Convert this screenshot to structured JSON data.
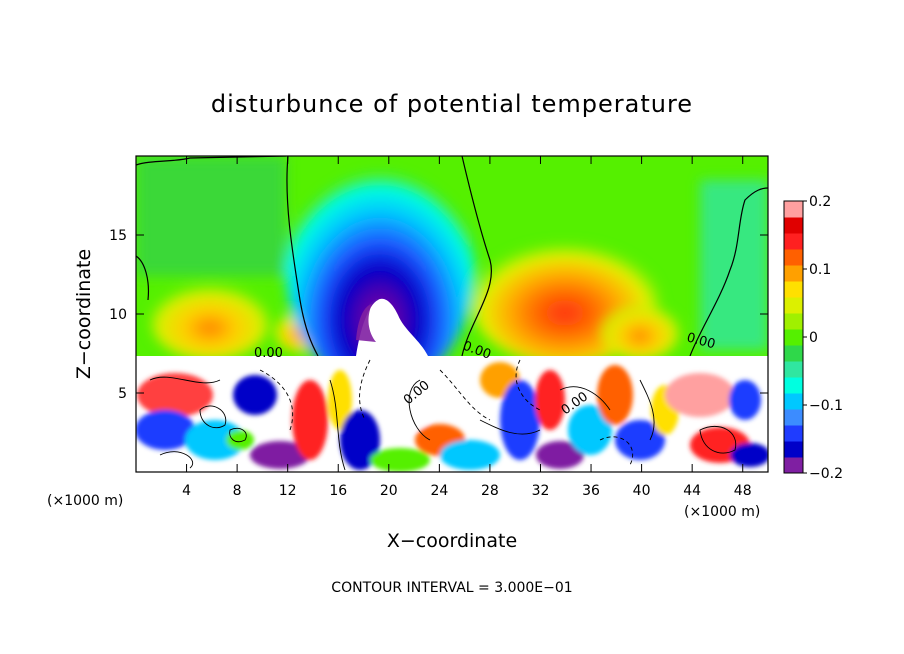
{
  "chart_data": {
    "type": "heatmap",
    "title": "disturbunce of potential temperature",
    "xlabel": "X−coordinate",
    "ylabel": "Z−coordinate",
    "x_unit_left": "(×1000 m)",
    "x_unit_right": "(×1000 m)",
    "footnote": "CONTOUR INTERVAL = 3.000E−01",
    "xlim": [
      0,
      50
    ],
    "ylim": [
      0,
      20
    ],
    "x_ticks": [
      4,
      8,
      12,
      16,
      20,
      24,
      28,
      32,
      36,
      40,
      44,
      48
    ],
    "x_tick_labels": [
      "4",
      "8",
      "12",
      "16",
      "20",
      "24",
      "28",
      "32",
      "36",
      "40",
      "44",
      "48"
    ],
    "y_ticks": [
      5,
      10,
      15
    ],
    "y_tick_labels": [
      "5",
      "10",
      "15"
    ],
    "colorbar": {
      "range": [
        -0.2,
        0.2
      ],
      "tick_values": [
        0.2,
        0.1,
        0,
        -0.1,
        -0.2
      ],
      "tick_labels": [
        "0.2",
        "0.1",
        "0",
        "−0.1",
        "−0.2"
      ],
      "colors": [
        "#7f1fa2",
        "#0000c8",
        "#1f3cff",
        "#3c8cff",
        "#00c8ff",
        "#00ffe0",
        "#30e6a0",
        "#2fd84a",
        "#55f000",
        "#a0f000",
        "#dcf000",
        "#ffe000",
        "#ffa000",
        "#ff6000",
        "#ff2020",
        "#e00000",
        "#ffa0a0"
      ]
    },
    "contour_label": "0.00",
    "features": [
      {
        "kind": "cold anomaly (minimum)",
        "x": 19,
        "z": 11,
        "value": -0.2
      },
      {
        "kind": "warm anomaly",
        "x": 34,
        "z": 9.5,
        "value": 0.15
      },
      {
        "kind": "warm anomaly",
        "x": 8,
        "z": 10,
        "value": 0.1
      },
      {
        "kind": "turbulent layer top",
        "z": 7.3
      }
    ]
  }
}
